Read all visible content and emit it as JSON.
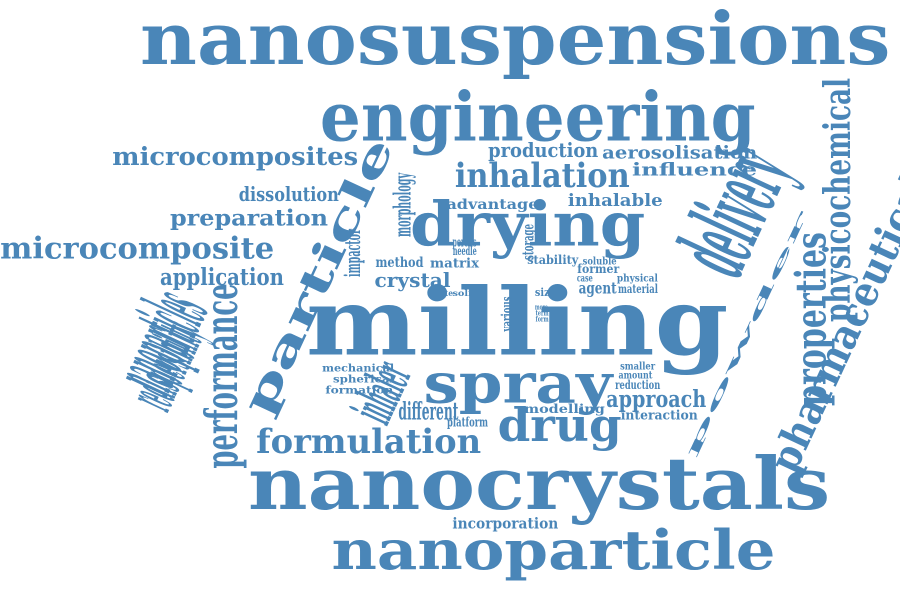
{
  "word_color": "#4a86b8",
  "words": [
    "nanosuspensions",
    "engineering",
    "microcomposites",
    "production",
    "aerosolisation",
    "influence",
    "inhalation",
    "dissolution",
    "morphology",
    "advantage",
    "inhalable",
    "drying",
    "delivery",
    "preparation",
    "microcomposite",
    "impactor",
    "porous",
    "needle",
    "storage",
    "method",
    "matrix",
    "stability",
    "soluble",
    "former",
    "physical",
    "crystal",
    "case",
    "agent",
    "material",
    "application",
    "particle",
    "state",
    "solid",
    "size",
    "more",
    "term",
    "form",
    "milling",
    "powder",
    "properties",
    "physicochemical",
    "pharmaceutical",
    "nanoparticles",
    "redispersibility",
    "performance",
    "various",
    "mechanical",
    "spherical",
    "formation",
    "inhaler",
    "spray",
    "smaller",
    "amount",
    "reduction",
    "approach",
    "different",
    "platform",
    "modelling",
    "interaction",
    "drug",
    "formulation",
    "nanocrystals",
    "incorporation",
    "nanoparticle"
  ]
}
